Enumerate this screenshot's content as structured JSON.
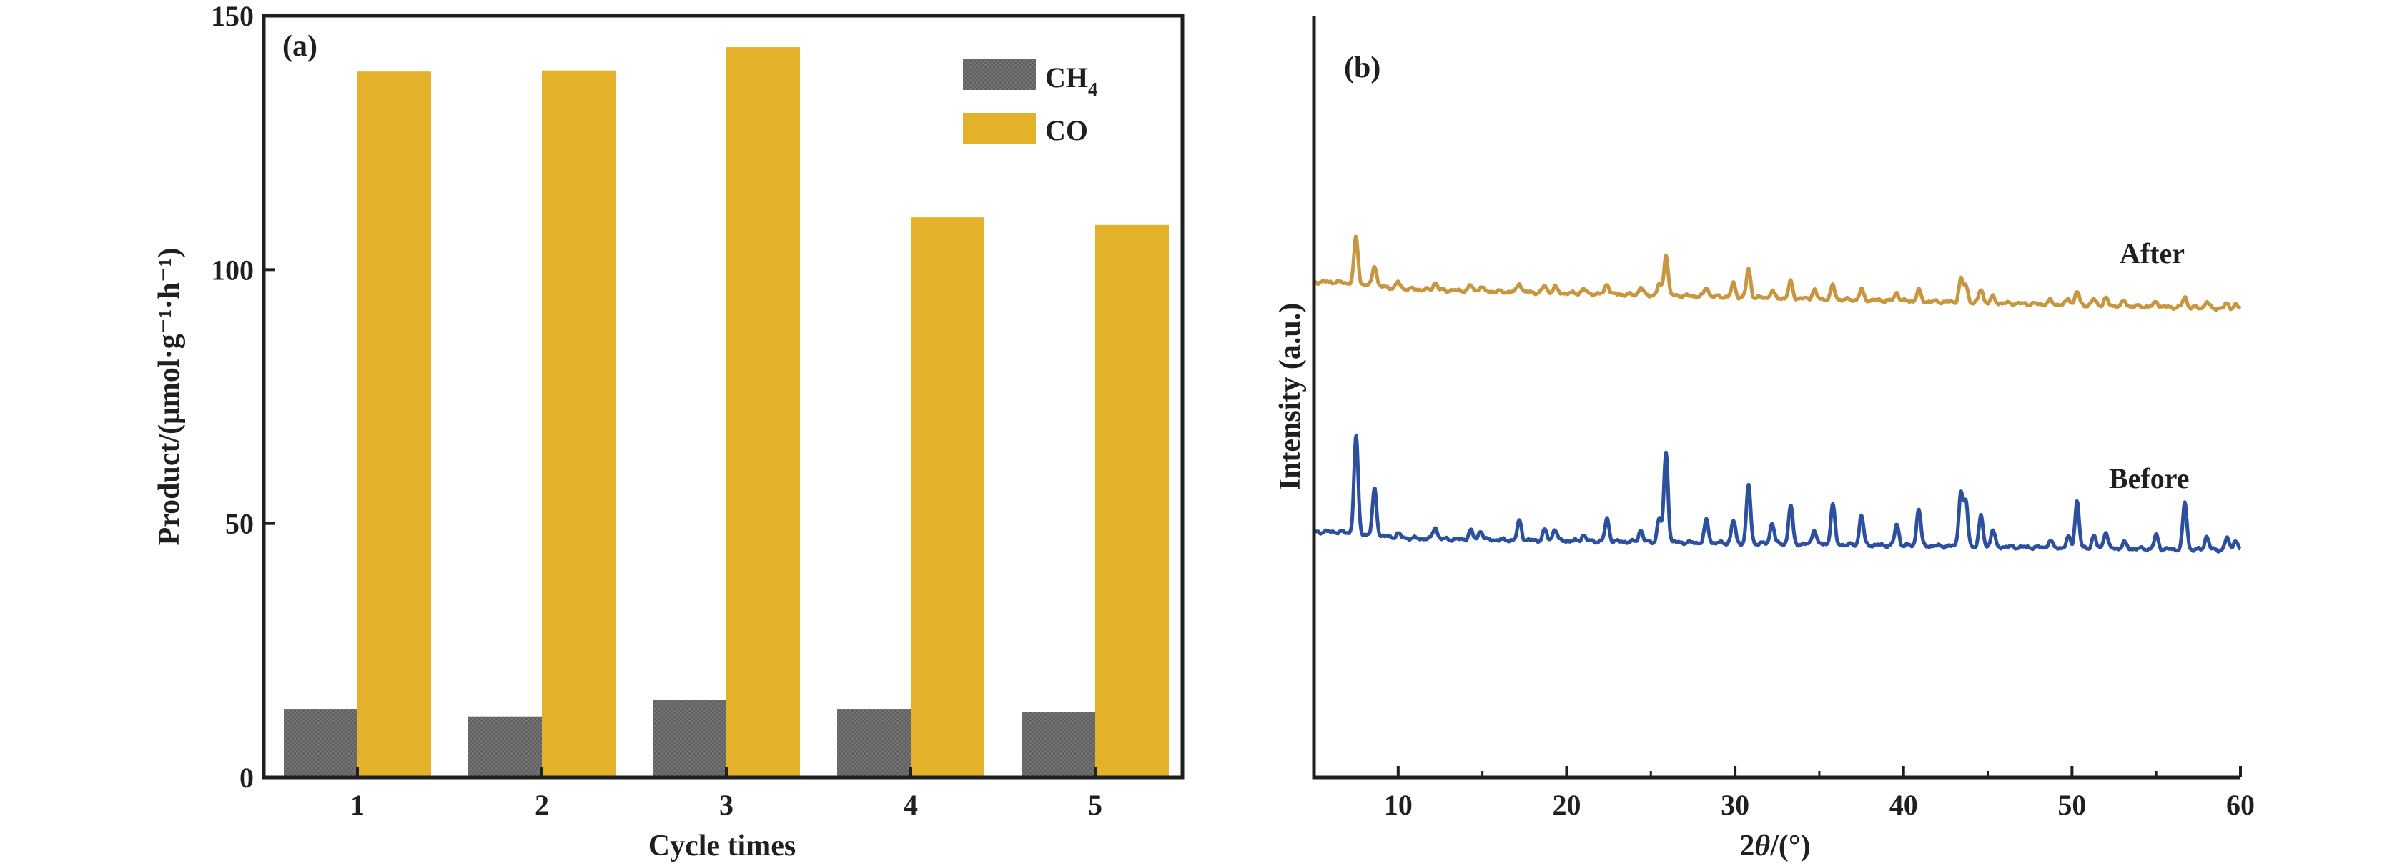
{
  "chart_data": [
    {
      "type": "bar",
      "panel_label": "(a)",
      "categories": [
        "1",
        "2",
        "3",
        "4",
        "5"
      ],
      "series": [
        {
          "name": "CH4",
          "name_main": "CH",
          "name_sub": "4",
          "color": "#6d6d6d",
          "values": [
            13.5,
            12.0,
            15.2,
            13.5,
            12.8
          ]
        },
        {
          "name": "CO",
          "color": "#e4b22a",
          "values": [
            139.0,
            139.2,
            143.8,
            110.3,
            108.8
          ]
        }
      ],
      "xlabel": "Cycle times",
      "ylabel": "Product/(μmol·g⁻¹·h⁻¹)",
      "ylim": [
        0,
        150
      ],
      "yticks": [
        "0",
        "50",
        "100",
        "150"
      ],
      "legend_position": "top-right",
      "grid": false
    },
    {
      "type": "line",
      "panel_label": "(b)",
      "xlabel_italic": "θ",
      "xlabel_pre": "2",
      "xlabel_post": "/(°)",
      "xlabel": "2θ/(°)",
      "ylabel": "Intensity (a.u.)",
      "xlim": [
        5,
        60
      ],
      "xticks": [
        "10",
        "20",
        "30",
        "40",
        "50",
        "60"
      ],
      "yticks_shown": false,
      "grid": false,
      "peaks": [
        7.5,
        8.6,
        10.0,
        12.2,
        14.3,
        14.9,
        17.2,
        18.7,
        19.3,
        21.0,
        22.4,
        24.4,
        25.5,
        25.9,
        28.3,
        29.9,
        30.8,
        32.2,
        33.3,
        34.7,
        35.8,
        37.5,
        39.6,
        40.9,
        43.4,
        43.7,
        44.6,
        45.3,
        48.7,
        49.8,
        50.3,
        51.3,
        52.0,
        53.1,
        55.0,
        56.7,
        58.0,
        59.2,
        59.7
      ],
      "series": [
        {
          "name": "After",
          "color": "#c8963e",
          "intensities": [
            62,
            28,
            8,
            10,
            7,
            6,
            12,
            9,
            8,
            6,
            14,
            10,
            14,
            55,
            12,
            18,
            38,
            9,
            22,
            12,
            18,
            14,
            11,
            15,
            30,
            22,
            18,
            8,
            5,
            8,
            18,
            8,
            10,
            6,
            7,
            14,
            8,
            6,
            5
          ]
        },
        {
          "name": "Before",
          "color": "#2c4f9e",
          "intensities": [
            130,
            62,
            5,
            16,
            12,
            12,
            26,
            14,
            16,
            8,
            30,
            16,
            32,
            120,
            30,
            30,
            78,
            28,
            52,
            20,
            54,
            40,
            28,
            50,
            72,
            58,
            40,
            22,
            9,
            14,
            62,
            16,
            22,
            8,
            18,
            62,
            18,
            16,
            14
          ]
        }
      ]
    }
  ]
}
